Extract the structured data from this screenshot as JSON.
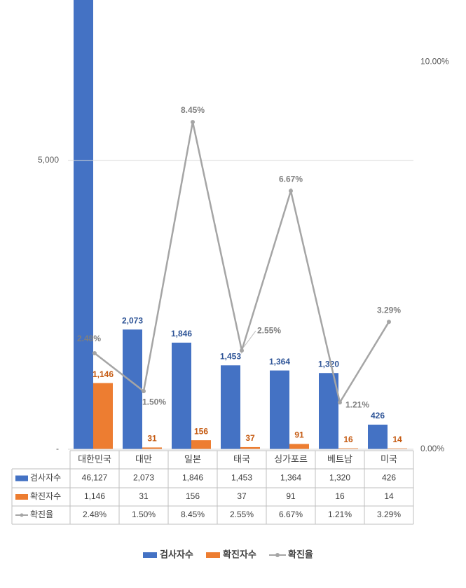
{
  "chart_data": {
    "type": "bar",
    "categories": [
      "대한민국",
      "대만",
      "일본",
      "태국",
      "싱가포르",
      "베트남",
      "미국"
    ],
    "series": [
      {
        "name": "검사자수",
        "color": "#4472c4",
        "values": [
          46127,
          2073,
          1846,
          1453,
          1364,
          1320,
          426
        ],
        "value_labels": [
          "46,127",
          "2,073",
          "1,846",
          "1,453",
          "1,364",
          "1,320",
          "426"
        ]
      },
      {
        "name": "확진자수",
        "color": "#ed7d31",
        "values": [
          1146,
          31,
          156,
          37,
          91,
          16,
          14
        ],
        "value_labels": [
          "1,146",
          "31",
          "156",
          "37",
          "91",
          "16",
          "14"
        ]
      },
      {
        "name": "확진율",
        "type": "line",
        "axis": "y2",
        "color": "#a5a5a5",
        "values": [
          2.48,
          1.5,
          8.45,
          2.55,
          6.67,
          1.21,
          3.29
        ],
        "value_labels": [
          "2.48%",
          "1.50%",
          "8.45%",
          "2.55%",
          "6.67%",
          "1.21%",
          "3.29%"
        ]
      }
    ],
    "ylim": [
      0,
      7780
    ],
    "yticks": [
      {
        "value": 0,
        "label": "-"
      },
      {
        "value": 5000,
        "label": "5,000"
      }
    ],
    "y2lim": [
      0,
      11.6
    ],
    "y2ticks": [
      {
        "value": 0,
        "label": "0.00%"
      },
      {
        "value": 10,
        "label": "10.00%"
      }
    ],
    "grid": true,
    "legend": "bottom"
  }
}
